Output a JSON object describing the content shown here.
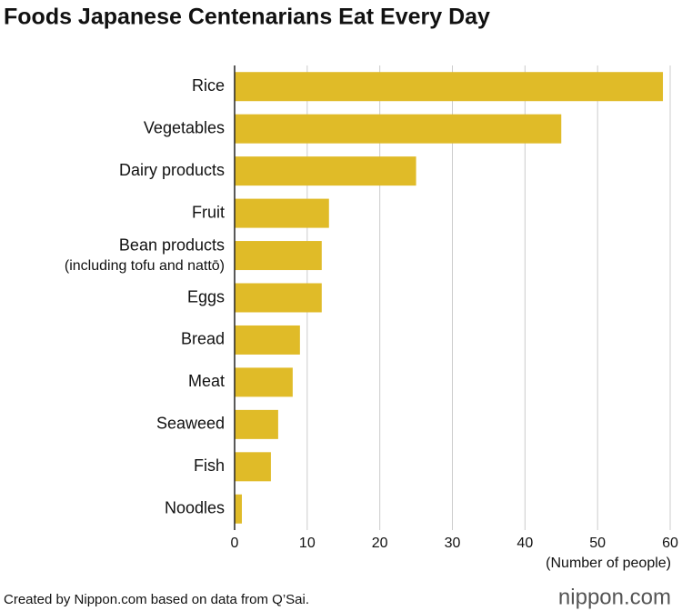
{
  "chart_data": {
    "type": "barh",
    "title": "Foods Japanese Centenarians Eat Every Day",
    "categories": [
      "Rice",
      "Vegetables",
      "Dairy products",
      "Fruit",
      [
        "Bean products",
        "(including tofu and nattō)"
      ],
      "Eggs",
      "Bread",
      "Meat",
      "Seaweed",
      "Fish",
      "Noodles"
    ],
    "values": [
      59,
      45,
      25,
      13,
      12,
      12,
      9,
      8,
      6,
      5,
      1
    ],
    "color": "#e0bb28",
    "xlim": [
      0,
      60
    ],
    "xticks": [
      0,
      10,
      20,
      30,
      40,
      50,
      60
    ],
    "xlabel": "(Number of people)",
    "grid": true,
    "source": "Created by Nippon.com based on data from Q’Sai.",
    "logo": "nippon.com"
  }
}
